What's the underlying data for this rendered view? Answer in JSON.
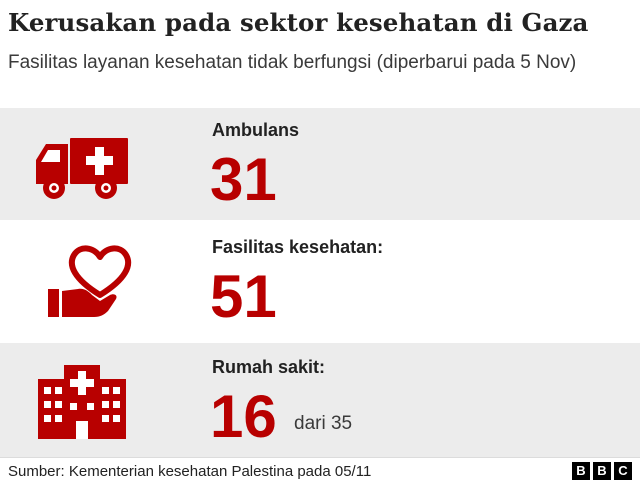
{
  "header": {
    "title": "Kerusakan pada sektor kesehatan di Gaza",
    "subtitle": "Fasilitas layanan kesehatan tidak berfungsi (diperbarui pada 5 Nov)"
  },
  "stats": [
    {
      "icon": "ambulance-icon",
      "label": "Ambulans",
      "value": "31"
    },
    {
      "icon": "heart-hand-icon",
      "label": "Fasilitas kesehatan:",
      "value": "51"
    },
    {
      "icon": "hospital-icon",
      "label": "Rumah sakit:",
      "value": "16",
      "suffix": "dari 35"
    }
  ],
  "footer": {
    "source": "Sumber: Kementerian kesehatan Palestina pada 05/11",
    "logo": [
      "B",
      "B",
      "C"
    ]
  },
  "colors": {
    "accent": "#b80000",
    "shaded_row": "#ececec",
    "text": "#222222"
  }
}
